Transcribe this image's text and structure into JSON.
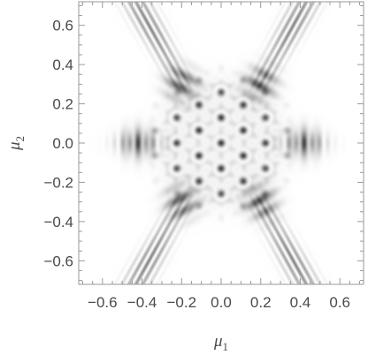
{
  "chart_data": {
    "type": "heatmap",
    "title": "",
    "xlabel": {
      "symbol": "μ",
      "subscript": "1"
    },
    "ylabel": {
      "symbol": "μ",
      "subscript": "2"
    },
    "xlim": [
      -0.72,
      0.72
    ],
    "ylim": [
      -0.72,
      0.72
    ],
    "x_ticks": [
      {
        "value": -0.6,
        "label": "−0.6"
      },
      {
        "value": -0.4,
        "label": "−0.4"
      },
      {
        "value": -0.2,
        "label": "−0.2"
      },
      {
        "value": 0.0,
        "label": "0.0"
      },
      {
        "value": 0.2,
        "label": "0.2"
      },
      {
        "value": 0.4,
        "label": "0.4"
      },
      {
        "value": 0.6,
        "label": "0.6"
      }
    ],
    "y_ticks": [
      {
        "value": 0.6,
        "label": "0.6"
      },
      {
        "value": 0.4,
        "label": "0.4"
      },
      {
        "value": 0.2,
        "label": "0.2"
      },
      {
        "value": 0.0,
        "label": "0.0"
      },
      {
        "value": -0.2,
        "label": "−0.2"
      },
      {
        "value": -0.4,
        "label": "−0.4"
      },
      {
        "value": -0.6,
        "label": "−0.6"
      }
    ],
    "colormap": "white-to-black grayscale",
    "grid": false,
    "description_features": {
      "central_interference_pattern_radius": 0.33,
      "hexagonal_symmetry": true,
      "lobes": [
        {
          "x": -0.42,
          "y": 0.0,
          "strength": 0.55
        },
        {
          "x": 0.42,
          "y": 0.0,
          "strength": 0.55
        },
        {
          "x": -0.2,
          "y": 0.3,
          "strength": 0.75
        },
        {
          "x": 0.2,
          "y": 0.3,
          "strength": 0.75
        },
        {
          "x": -0.2,
          "y": -0.3,
          "strength": 0.75
        },
        {
          "x": 0.2,
          "y": -0.3,
          "strength": 0.75
        }
      ],
      "streak_direction_deg": [
        60,
        120
      ]
    }
  },
  "colors": {
    "frame": "#9a9a9a",
    "text": "#4a4a4a",
    "background": "#ffffff"
  }
}
